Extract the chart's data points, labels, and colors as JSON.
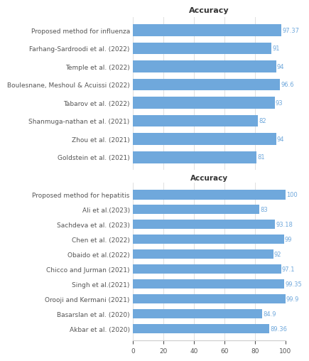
{
  "top_section_title": "Accuracy",
  "top_labels": [
    "Proposed method for influenza",
    "Farhang-Sardroodi et al. (2022)",
    "Temple et al. (2022)",
    "Boulesnane, Meshoul & Acuissi (2022)",
    "Tabarov et al. (2022)",
    "Shanmuga-nathan et al. (2021)",
    "Zhou et al. (2021)",
    "Goldstein et al. (2021)"
  ],
  "top_values": [
    97.37,
    91,
    94,
    96.6,
    93,
    82,
    94,
    81
  ],
  "top_value_labels": [
    "97.37",
    "91",
    "94",
    "96.6",
    "93",
    "82",
    "94",
    "81"
  ],
  "bottom_section_title": "Accuracy",
  "bottom_labels": [
    "Proposed method for hepatitis",
    "Ali et al.(2023)",
    "Sachdeva et al. (2023)",
    "Chen et al. (2022)",
    "Obaido et al.(2022)",
    "Chicco and Jurman (2021)",
    "Singh et al.(2021)",
    "Orooji and Kermani (2021)",
    "Basarslan et al. (2020)",
    "Akbar et al. (2020)"
  ],
  "bottom_values": [
    100,
    83,
    93.18,
    99,
    92,
    97.1,
    99.35,
    99.9,
    84.9,
    89.36
  ],
  "bottom_value_labels": [
    "100",
    "83",
    "93.18",
    "99",
    "92",
    "97.1",
    "99.35",
    "99.9",
    "84.9",
    "89.36"
  ],
  "bar_color": "#6fa8dc",
  "value_color": "#6fa8dc",
  "background_color": "#ffffff",
  "grid_color": "#e0e0e0",
  "xlim": [
    0,
    100
  ],
  "xticks": [
    0,
    20,
    40,
    60,
    80,
    100
  ],
  "label_fontsize": 6.5,
  "value_fontsize": 6.0,
  "title_fontsize": 8,
  "xlabel_fontsize": 7.5,
  "bar_height": 0.65
}
